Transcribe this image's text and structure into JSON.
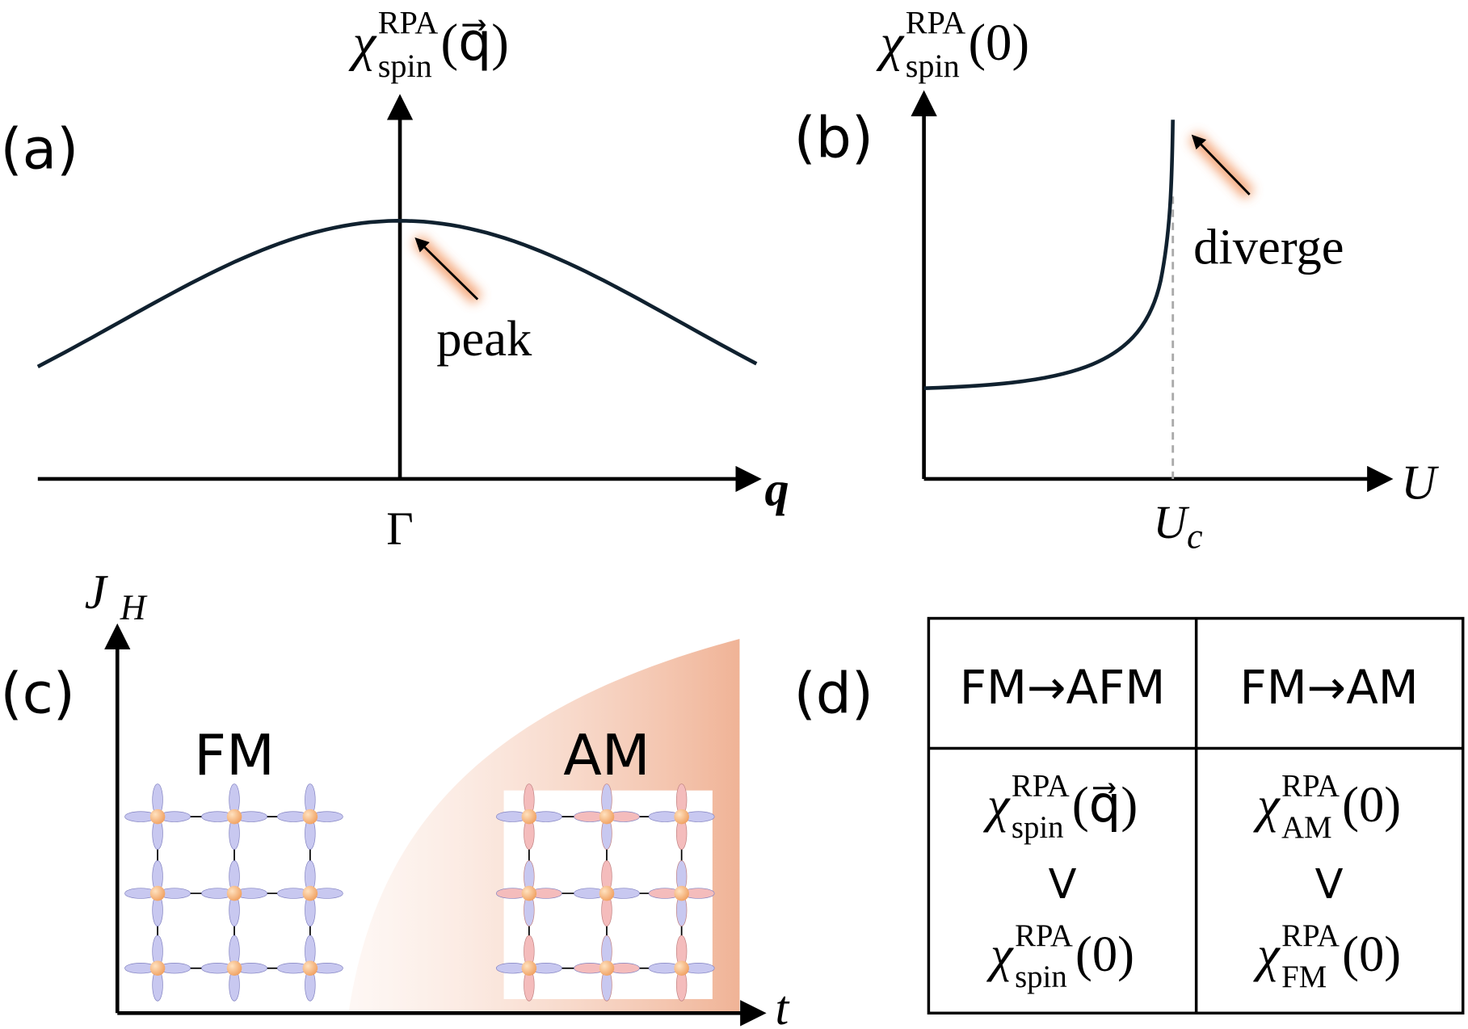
{
  "panels": [
    {
      "label": "(a)",
      "y_axis": {
        "symbol": "χ",
        "sup": "RPA",
        "sub": "spin",
        "arg": "(q⃗)"
      },
      "x_axis": "q⃗",
      "x_tick": "Γ",
      "annotation": "peak"
    },
    {
      "label": "(b)",
      "y_axis": {
        "symbol": "χ",
        "sup": "RPA",
        "sub": "spin",
        "arg": "(0)"
      },
      "x_axis": "U",
      "x_tick": {
        "base": "U",
        "sub": "c"
      },
      "annotation": "diverge"
    },
    {
      "label": "(c)",
      "y_axis": {
        "base": "J",
        "sub": "H"
      },
      "x_axis": "t",
      "regions": [
        "FM",
        "AM"
      ]
    },
    {
      "label": "(d)",
      "table": {
        "headers": [
          "FM→AFM",
          "FM→AM"
        ],
        "cells": [
          {
            "upper": {
              "symbol": "χ",
              "sup": "RPA",
              "sub": "spin",
              "arg": "(q⃗)"
            },
            "relation": "V",
            "lower": {
              "symbol": "χ",
              "sup": "RPA",
              "sub": "spin",
              "arg": "(0)"
            }
          },
          {
            "upper": {
              "symbol": "χ",
              "sup": "RPA",
              "sub": "AM",
              "arg": "(0)"
            },
            "relation": "V",
            "lower": {
              "symbol": "χ",
              "sup": "RPA",
              "sub": "FM",
              "arg": "(0)"
            }
          }
        ]
      }
    }
  ]
}
